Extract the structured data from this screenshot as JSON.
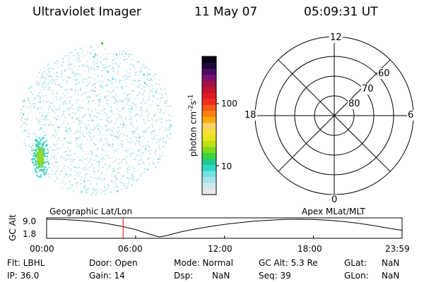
{
  "header": {
    "instrument": "Ultraviolet Imager",
    "date": "11 May 07",
    "time": "05:09:31 UT"
  },
  "colorbar": {
    "units_label": "photon cm",
    "units_sup1": "-2",
    "units_mid": "s",
    "units_sup2": "-1",
    "tick_labels": [
      "100",
      "10"
    ],
    "tick_values": [
      100,
      10
    ],
    "colors": [
      "#e8e8e8",
      "#cde9ec",
      "#a9e3ea",
      "#76e0e3",
      "#2ed6c8",
      "#20c88e",
      "#3cd23c",
      "#7ed81c",
      "#bde017",
      "#e6e51a",
      "#f6df3c",
      "#fbd16a",
      "#fca90f",
      "#f98111",
      "#f65a14",
      "#ef2e1d",
      "#de1a23",
      "#c0142c",
      "#a01146",
      "#7a1272",
      "#4b0b66",
      "#1e0838",
      "#0a0015"
    ]
  },
  "polar_grid": {
    "mlt_labels": [
      "12",
      "18",
      "6",
      "0"
    ],
    "lat_labels": [
      "60",
      "70",
      "80"
    ]
  },
  "timeline": {
    "left_label": "Geographic Lat/Lon",
    "right_label": "Apex MLat/MLT",
    "axis_label": "GC Alt",
    "y_ticks": [
      "9.0",
      "1.8"
    ],
    "x_ticks": [
      "00:00",
      "06:00",
      "12:00",
      "18:00",
      "23:59"
    ],
    "marker_time": "05:09:31",
    "cursor_color": "#ff0000"
  },
  "chart_data": {
    "type": "line",
    "title": "",
    "xlabel": "",
    "ylabel": "GC Alt",
    "x_hours": [
      0,
      1,
      2,
      3,
      4,
      5,
      6,
      7,
      7.6,
      8,
      9,
      10,
      11,
      12,
      13,
      14,
      15,
      16,
      17,
      18,
      19,
      20,
      21,
      22,
      23,
      23.98
    ],
    "y_values": [
      9.0,
      8.9,
      8.6,
      8.1,
      7.3,
      6.2,
      4.8,
      2.8,
      1.8,
      2.2,
      3.8,
      5.0,
      6.0,
      6.9,
      7.6,
      8.2,
      8.6,
      8.9,
      9.0,
      8.9,
      8.6,
      8.1,
      7.4,
      6.5,
      5.4,
      4.5
    ],
    "xlim": [
      0,
      23.98
    ],
    "ylim": [
      1.8,
      9.0
    ]
  },
  "status": {
    "flt": "Flt: LBHL",
    "ip": "IP: 36.0",
    "door": "Door: Open",
    "gain": "Gain: 14",
    "mode": "Mode: Normal",
    "dsp_label": "Dsp:",
    "dsp_value": "NaN",
    "gc_alt": "GC Alt: 5.3 Re",
    "seq": "Seq: 39",
    "glat_label": "GLat:",
    "glat_value": "NaN",
    "glon_label": "GLon:",
    "glon_value": "NaN"
  }
}
